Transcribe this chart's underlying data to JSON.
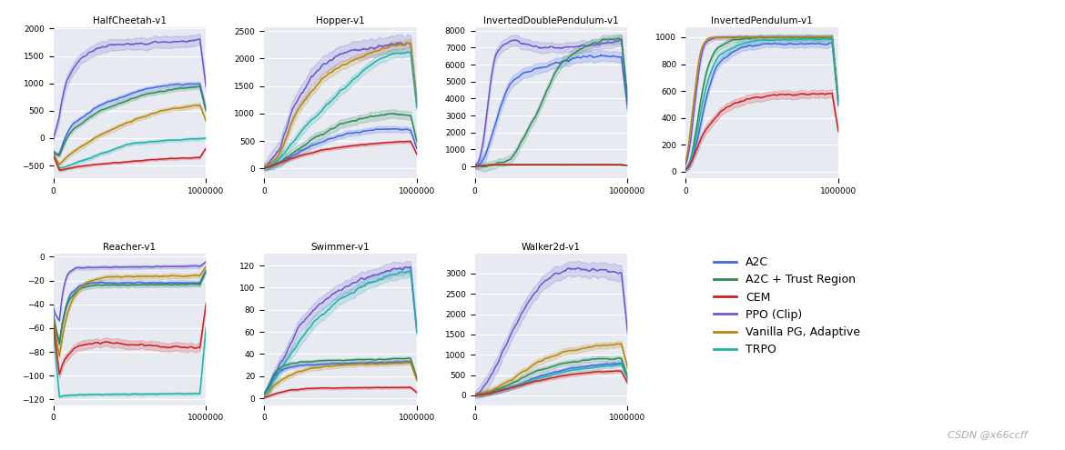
{
  "colors": {
    "A2C": "#4169E1",
    "A2C_TR": "#2E8B57",
    "CEM": "#CC2222",
    "PPO": "#6A5ACD",
    "VPG": "#B8860B",
    "TRPO": "#20B2AA"
  },
  "legend_labels": [
    "A2C",
    "A2C + Trust Region",
    "CEM",
    "PPO (Clip)",
    "Vanilla PG, Adaptive",
    "TRPO"
  ],
  "bg_color": "#E8EAF2",
  "watermark": "CSDN @x66ccff",
  "envs": [
    "HalfCheetah-v1",
    "Hopper-v1",
    "InvertedDoublePendulum-v1",
    "InvertedPendulum-v1",
    "Reacher-v1",
    "Swimmer-v1",
    "Walker2d-v1"
  ]
}
